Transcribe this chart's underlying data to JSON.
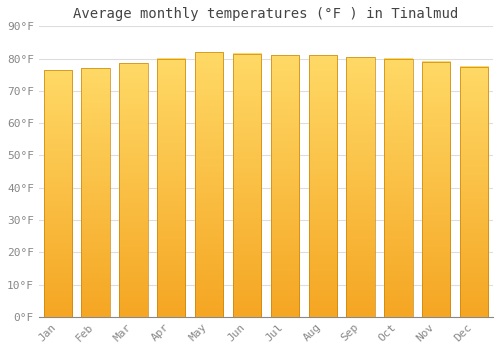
{
  "title": "Average monthly temperatures (°F ) in Tinalmud",
  "months": [
    "Jan",
    "Feb",
    "Mar",
    "Apr",
    "May",
    "Jun",
    "Jul",
    "Aug",
    "Sep",
    "Oct",
    "Nov",
    "Dec"
  ],
  "values": [
    76.5,
    77.0,
    78.5,
    80.0,
    82.0,
    81.5,
    81.0,
    81.0,
    80.5,
    80.0,
    79.0,
    77.5
  ],
  "bar_color_bottom": "#F5A623",
  "bar_color_top": "#FFD966",
  "bar_edge_color": "#C8830A",
  "background_color": "#FFFFFF",
  "plot_bg_color": "#FFFFFF",
  "grid_color": "#DDDDDD",
  "ylim": [
    0,
    90
  ],
  "ytick_step": 10,
  "title_fontsize": 10,
  "tick_fontsize": 8,
  "tick_color": "#888888",
  "title_color": "#444444",
  "font_family": "monospace",
  "bar_width": 0.75
}
